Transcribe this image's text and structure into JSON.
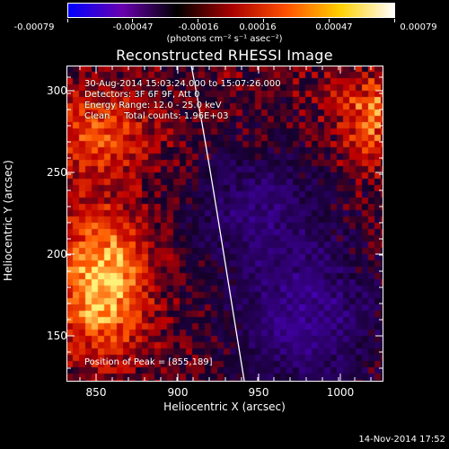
{
  "colorbar": {
    "tick_labels": [
      "-0.00079",
      "-0.00047",
      "-0.00016",
      "0.00016",
      "0.00047",
      "0.00079"
    ],
    "units": "(photons cm⁻² s⁻¹ asec⁻²)",
    "colors": [
      "#0000ff",
      "#6a00b0",
      "#000000",
      "#a80000",
      "#ff5000",
      "#ffd000",
      "#ffffff"
    ]
  },
  "title": "Reconstructed RHESSI Image",
  "info_lines": [
    "30-Aug-2014 15:03:24.000 to 15:07:26.000",
    "Detectors: 3F 6F 9F, Att 0",
    "Energy Range: 12.0 - 25.0 keV",
    "Clean     Total counts: 1.96E+03"
  ],
  "peak_text": "Position of Peak = [855,189]",
  "axes": {
    "xlabel": "Heliocentric X (arcsec)",
    "ylabel": "Heliocentric Y (arcsec)",
    "x_ticks": [
      "850",
      "900",
      "950",
      "1000"
    ],
    "y_ticks": [
      "150",
      "200",
      "250",
      "300"
    ],
    "xlim": [
      833,
      1025
    ],
    "ylim": [
      120,
      313
    ]
  },
  "timestamp": "14-Nov-2014 17:52"
}
